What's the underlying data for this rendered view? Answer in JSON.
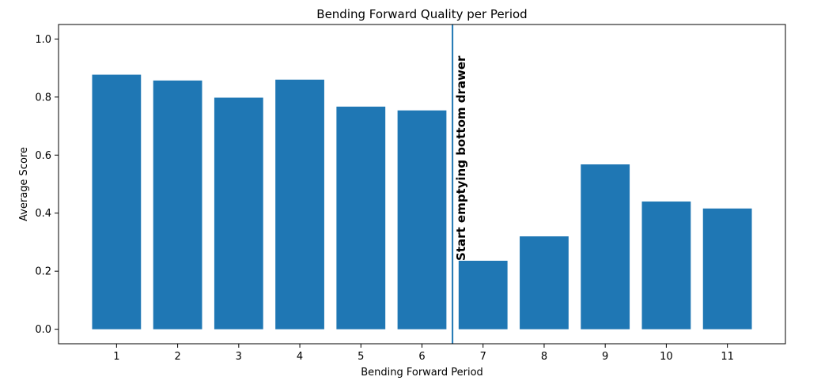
{
  "chart_data": {
    "type": "bar",
    "title": "Bending Forward Quality per Period",
    "xlabel": "Bending Forward Period",
    "ylabel": "Average Score",
    "categories": [
      "1",
      "2",
      "3",
      "4",
      "5",
      "6",
      "7",
      "8",
      "9",
      "10",
      "11"
    ],
    "values": [
      0.877,
      0.857,
      0.798,
      0.86,
      0.767,
      0.754,
      0.236,
      0.32,
      0.568,
      0.44,
      0.416
    ],
    "ylim": [
      -0.05,
      1.05
    ],
    "yticks": [
      "0.0",
      "0.2",
      "0.4",
      "0.6",
      "0.8",
      "1.0"
    ],
    "bar_color": "#1f77b4",
    "annotation": {
      "label": "Start emptying bottom drawer",
      "x": 6.5,
      "line_color": "#1f77b4"
    },
    "grid": false
  }
}
